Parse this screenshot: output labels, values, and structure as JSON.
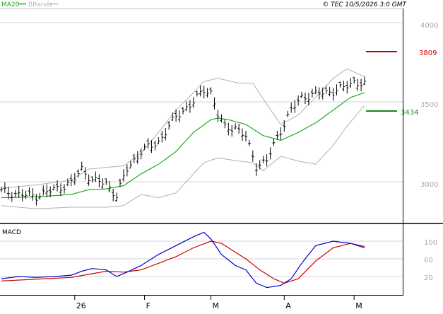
{
  "header": {
    "legend_ma": "MA20",
    "legend_bands": "BBands",
    "copyright": "© TEC 10/5/2026 3:0 GMT"
  },
  "colors": {
    "ma": "#1faa1f",
    "bands": "#b0b0b0",
    "price": "#000000",
    "resistance": "#cc0000",
    "support": "#1a8a1a",
    "macd": "#0000cc",
    "signal": "#cc0000",
    "grid": "#d6d6d6",
    "frame": "#000000"
  },
  "chart_data": [
    {
      "type": "line",
      "title": "",
      "ylim": [
        2750,
        4090
      ],
      "yticks": [
        {
          "value": 4000,
          "label": "4000"
        },
        {
          "value": 3500,
          "label": "3500"
        },
        {
          "value": 3000,
          "label": "3000"
        }
      ],
      "levels": [
        {
          "name": "resistance",
          "value": 3809,
          "label": "3809"
        },
        {
          "name": "support",
          "value": 3434,
          "label": "3434"
        }
      ],
      "x_labels": [
        {
          "index": 21,
          "label": "26"
        },
        {
          "index": 41,
          "label": "F"
        },
        {
          "index": 60,
          "label": "M"
        },
        {
          "index": 81,
          "label": "A"
        },
        {
          "index": 101,
          "label": "M"
        }
      ],
      "x_count": 105,
      "price_anchors": [
        [
          0,
          2940
        ],
        [
          5,
          2920
        ],
        [
          10,
          2910
        ],
        [
          15,
          2950
        ],
        [
          20,
          2990
        ],
        [
          23,
          3080
        ],
        [
          26,
          3010
        ],
        [
          30,
          2990
        ],
        [
          33,
          2910
        ],
        [
          36,
          3080
        ],
        [
          40,
          3190
        ],
        [
          45,
          3250
        ],
        [
          50,
          3410
        ],
        [
          55,
          3500
        ],
        [
          58,
          3580
        ],
        [
          60,
          3560
        ],
        [
          62,
          3420
        ],
        [
          64,
          3340
        ],
        [
          67,
          3340
        ],
        [
          70,
          3280
        ],
        [
          73,
          3100
        ],
        [
          76,
          3130
        ],
        [
          79,
          3280
        ],
        [
          83,
          3450
        ],
        [
          86,
          3530
        ],
        [
          90,
          3550
        ],
        [
          95,
          3570
        ],
        [
          98,
          3590
        ],
        [
          101,
          3630
        ],
        [
          104,
          3610
        ]
      ],
      "series": [
        {
          "name": "MA20",
          "anchors": [
            [
              0,
              2900
            ],
            [
              10,
              2905
            ],
            [
              20,
              2920
            ],
            [
              25,
              2950
            ],
            [
              30,
              2955
            ],
            [
              35,
              2975
            ],
            [
              40,
              3050
            ],
            [
              45,
              3110
            ],
            [
              50,
              3190
            ],
            [
              55,
              3310
            ],
            [
              60,
              3390
            ],
            [
              62,
              3400
            ],
            [
              65,
              3390
            ],
            [
              70,
              3360
            ],
            [
              75,
              3290
            ],
            [
              80,
              3260
            ],
            [
              85,
              3310
            ],
            [
              90,
              3370
            ],
            [
              95,
              3450
            ],
            [
              100,
              3530
            ],
            [
              104,
              3560
            ]
          ]
        },
        {
          "name": "BBands upper",
          "anchors": [
            [
              0,
              2960
            ],
            [
              10,
              2980
            ],
            [
              20,
              3010
            ],
            [
              25,
              3080
            ],
            [
              30,
              3090
            ],
            [
              35,
              3100
            ],
            [
              40,
              3180
            ],
            [
              45,
              3310
            ],
            [
              50,
              3450
            ],
            [
              55,
              3560
            ],
            [
              58,
              3630
            ],
            [
              62,
              3650
            ],
            [
              68,
              3620
            ],
            [
              72,
              3620
            ],
            [
              75,
              3520
            ],
            [
              80,
              3360
            ],
            [
              85,
              3420
            ],
            [
              90,
              3530
            ],
            [
              95,
              3650
            ],
            [
              99,
              3710
            ],
            [
              104,
              3660
            ]
          ]
        },
        {
          "name": "BBands lower",
          "anchors": [
            [
              0,
              2850
            ],
            [
              10,
              2830
            ],
            [
              20,
              2840
            ],
            [
              25,
              2840
            ],
            [
              30,
              2840
            ],
            [
              35,
              2850
            ],
            [
              40,
              2920
            ],
            [
              45,
              2900
            ],
            [
              50,
              2930
            ],
            [
              55,
              3050
            ],
            [
              58,
              3120
            ],
            [
              62,
              3150
            ],
            [
              68,
              3130
            ],
            [
              72,
              3120
            ],
            [
              75,
              3070
            ],
            [
              80,
              3160
            ],
            [
              85,
              3130
            ],
            [
              90,
              3110
            ],
            [
              95,
              3230
            ],
            [
              99,
              3350
            ],
            [
              104,
              3480
            ]
          ]
        }
      ]
    },
    {
      "type": "line",
      "title": "MACD",
      "ylim": [
        -60,
        140
      ],
      "yticks": [
        {
          "value": 100,
          "label": "100"
        },
        {
          "value": 60,
          "label": "60"
        },
        {
          "value": 20,
          "label": "20"
        }
      ],
      "series": [
        {
          "name": "MACD",
          "anchors": [
            [
              0,
              15
            ],
            [
              5,
              20
            ],
            [
              10,
              18
            ],
            [
              15,
              20
            ],
            [
              20,
              23
            ],
            [
              23,
              32
            ],
            [
              26,
              38
            ],
            [
              30,
              35
            ],
            [
              33,
              20
            ],
            [
              36,
              30
            ],
            [
              40,
              45
            ],
            [
              45,
              70
            ],
            [
              50,
              90
            ],
            [
              55,
              110
            ],
            [
              58,
              120
            ],
            [
              60,
              105
            ],
            [
              63,
              70
            ],
            [
              67,
              45
            ],
            [
              70,
              35
            ],
            [
              73,
              5
            ],
            [
              76,
              -5
            ],
            [
              80,
              0
            ],
            [
              83,
              15
            ],
            [
              86,
              50
            ],
            [
              90,
              90
            ],
            [
              95,
              100
            ],
            [
              100,
              95
            ],
            [
              104,
              85
            ]
          ]
        },
        {
          "name": "Signal",
          "anchors": [
            [
              0,
              10
            ],
            [
              10,
              14
            ],
            [
              20,
              18
            ],
            [
              25,
              25
            ],
            [
              30,
              32
            ],
            [
              35,
              30
            ],
            [
              40,
              35
            ],
            [
              45,
              50
            ],
            [
              50,
              65
            ],
            [
              55,
              85
            ],
            [
              60,
              100
            ],
            [
              63,
              95
            ],
            [
              67,
              75
            ],
            [
              70,
              60
            ],
            [
              74,
              35
            ],
            [
              78,
              15
            ],
            [
              81,
              5
            ],
            [
              85,
              15
            ],
            [
              90,
              55
            ],
            [
              95,
              85
            ],
            [
              100,
              95
            ],
            [
              104,
              88
            ]
          ]
        }
      ]
    }
  ]
}
